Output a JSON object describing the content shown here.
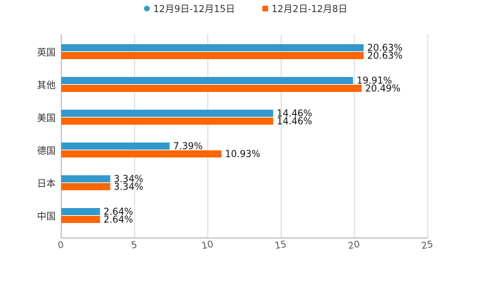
{
  "chart_data": {
    "type": "bar",
    "orientation": "horizontal",
    "categories": [
      "英国",
      "其他",
      "美国",
      "德国",
      "日本",
      "中国"
    ],
    "series": [
      {
        "name": "12月9日-12月15日",
        "color": "#3399cc",
        "values": [
          20.63,
          19.91,
          14.46,
          7.39,
          3.34,
          2.64
        ],
        "labels": [
          "20.63%",
          "19.91%",
          "14.46%",
          "7.39%",
          "3.34%",
          "2.64%"
        ]
      },
      {
        "name": "12月2日-12月8日",
        "color": "#ff6600",
        "values": [
          20.63,
          20.49,
          14.46,
          10.93,
          3.34,
          2.64
        ],
        "labels": [
          "20.63%",
          "20.49%",
          "14.46%",
          "10.93%",
          "3.34%",
          "2.64%"
        ]
      }
    ],
    "xlim": [
      0,
      25
    ],
    "xticks": [
      "0",
      "5",
      "10",
      "15",
      "20",
      "25"
    ],
    "grid": true,
    "legend_position": "top-center"
  }
}
